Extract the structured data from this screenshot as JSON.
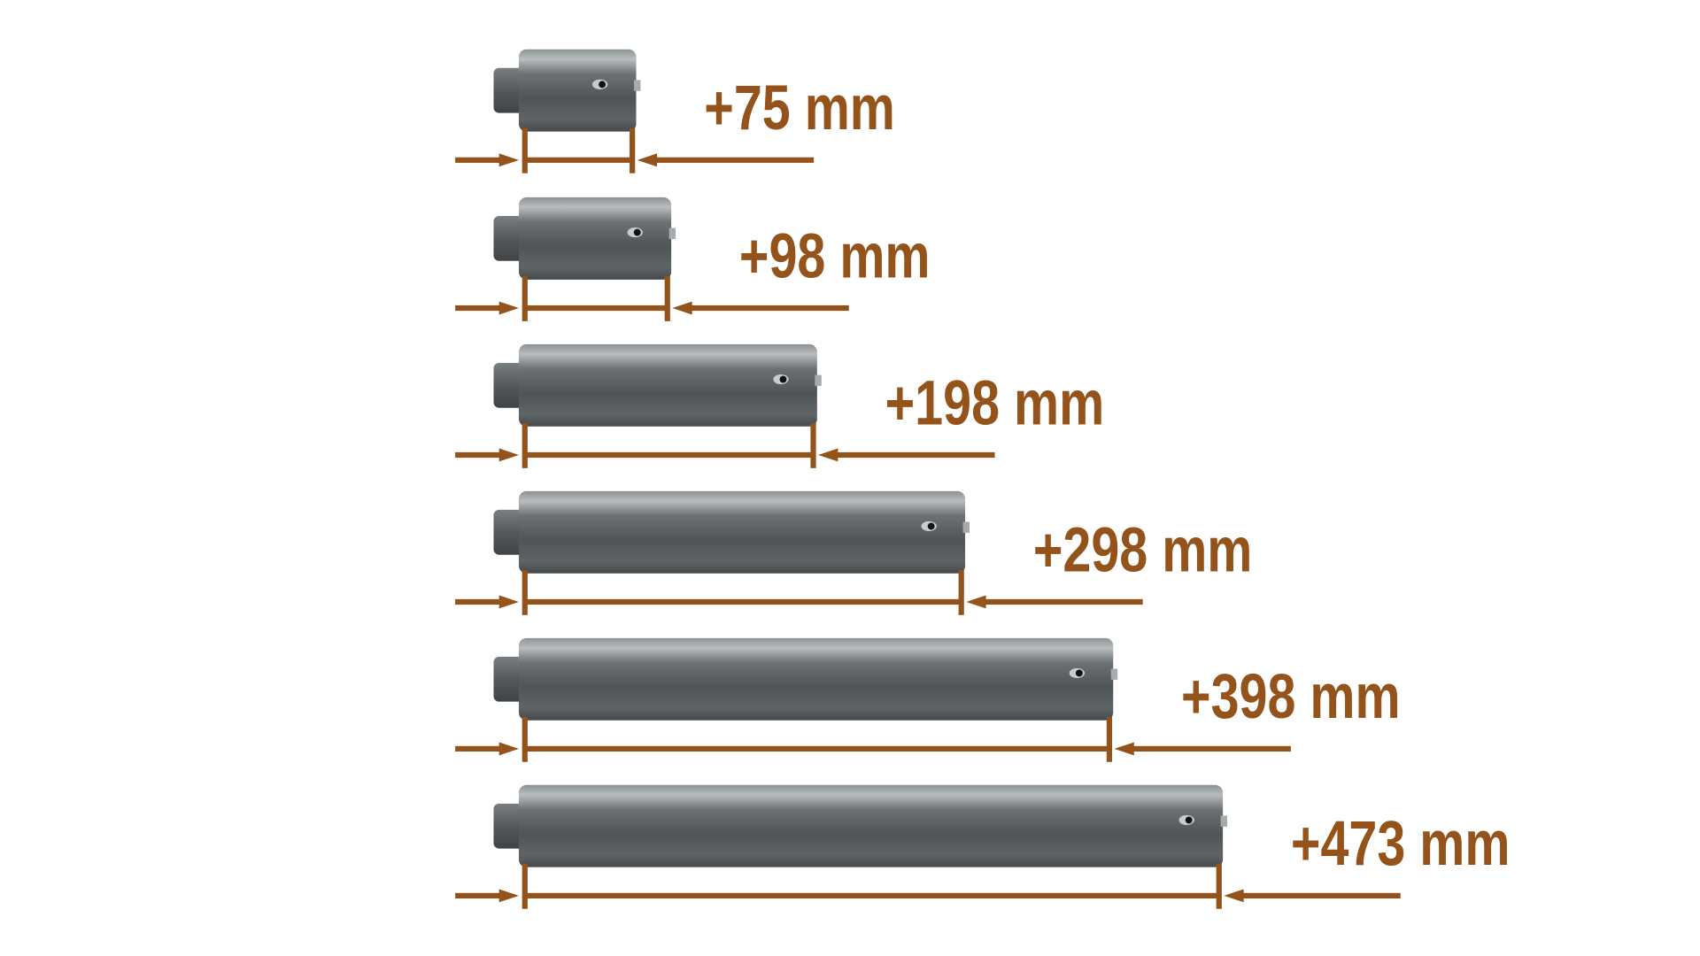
{
  "colors": {
    "dimension": "#93531a",
    "cylinder": "#5b6063",
    "background": "#ffffff"
  },
  "rows": [
    {
      "label": "+75 mm"
    },
    {
      "label": "+98 mm"
    },
    {
      "label": "+198 mm"
    },
    {
      "label": "+298 mm"
    },
    {
      "label": "+398 mm"
    },
    {
      "label": "+473 mm"
    }
  ]
}
